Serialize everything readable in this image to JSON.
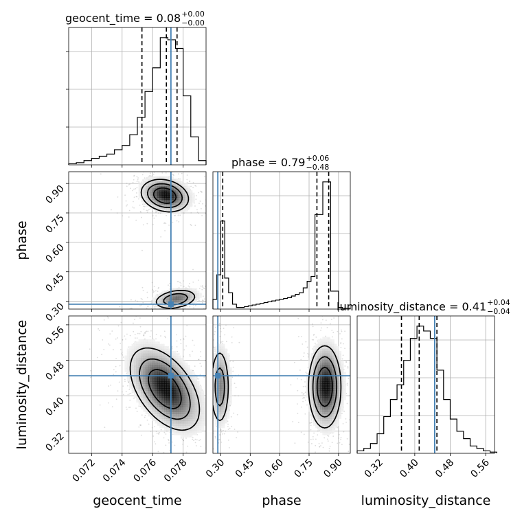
{
  "colors": {
    "truth": "#4682b4",
    "ink": "#000000",
    "grid": "#b0b0b0",
    "scatter": "#9a9a9a"
  },
  "chart_data": {
    "type": "corner",
    "parameters": [
      "geocent_time",
      "phase",
      "luminosity_distance"
    ],
    "titles": [
      {
        "name": "geocent_time",
        "value": "0.08",
        "plus": "+0.00",
        "minus": "−0.00"
      },
      {
        "name": "phase",
        "value": "0.79",
        "plus": "+0.06",
        "minus": "−0.48"
      },
      {
        "name": "luminosity_distance",
        "value": "0.41",
        "plus": "+0.04",
        "minus": "−0.04"
      }
    ],
    "truths": [
      0.0772,
      0.285,
      0.445
    ],
    "ranges": [
      [
        0.0705,
        0.0795
      ],
      [
        0.26,
        0.96
      ],
      [
        0.27,
        0.58
      ]
    ],
    "ticks": [
      {
        "values": [
          0.072,
          0.074,
          0.076,
          0.078
        ],
        "labels": [
          "0.072",
          "0.074",
          "0.076",
          "0.078"
        ]
      },
      {
        "values": [
          0.3,
          0.45,
          0.6,
          0.75,
          0.9
        ],
        "labels": [
          "0.30",
          "0.45",
          "0.60",
          "0.75",
          "0.90"
        ]
      },
      {
        "values": [
          0.32,
          0.4,
          0.48,
          0.56
        ],
        "labels": [
          "0.32",
          "0.40",
          "0.48",
          "0.56"
        ]
      }
    ],
    "grid": true,
    "histograms": [
      {
        "param": "geocent_time",
        "bins": [
          0.0705,
          0.071,
          0.0715,
          0.072,
          0.0725,
          0.073,
          0.0735,
          0.074,
          0.0745,
          0.075,
          0.0755,
          0.076,
          0.0765,
          0.077,
          0.0775,
          0.078,
          0.0785,
          0.079,
          0.0795
        ],
        "counts": [
          0.5,
          1,
          2,
          3,
          4,
          5,
          7,
          9,
          14,
          22,
          34,
          45,
          59,
          58,
          54,
          32,
          13,
          2
        ],
        "quantiles": [
          0.0753,
          0.0769,
          0.0776
        ]
      },
      {
        "param": "phase",
        "bins": [
          0.26,
          0.28,
          0.3,
          0.32,
          0.34,
          0.36,
          0.38,
          0.4,
          0.42,
          0.44,
          0.46,
          0.48,
          0.5,
          0.52,
          0.54,
          0.56,
          0.58,
          0.6,
          0.62,
          0.64,
          0.66,
          0.68,
          0.7,
          0.72,
          0.74,
          0.76,
          0.78,
          0.8,
          0.82,
          0.84,
          0.86,
          0.88,
          0.9,
          0.92,
          0.94,
          0.96
        ],
        "counts": [
          6,
          21,
          54,
          19,
          10,
          3,
          1,
          1,
          1.5,
          2,
          2.5,
          3,
          3.5,
          4,
          4.5,
          5,
          5.5,
          6,
          6.5,
          7,
          8,
          9,
          10,
          13,
          17,
          20,
          58,
          58,
          78,
          78,
          11,
          11,
          1,
          0.5,
          0.5
        ],
        "quantiles": [
          0.31,
          0.79,
          0.85
        ]
      },
      {
        "param": "luminosity_distance",
        "bins": [
          0.27,
          0.285,
          0.3,
          0.315,
          0.33,
          0.345,
          0.36,
          0.375,
          0.39,
          0.405,
          0.42,
          0.435,
          0.45,
          0.465,
          0.48,
          0.495,
          0.51,
          0.525,
          0.54,
          0.555,
          0.57,
          0.585
        ],
        "counts": [
          1,
          2,
          4,
          8,
          15,
          22,
          28,
          38,
          47,
          52,
          50,
          47,
          34,
          22,
          14,
          9,
          6,
          3,
          2,
          1,
          0.5
        ],
        "quantiles": [
          0.37,
          0.41,
          0.45
        ]
      }
    ],
    "contours_2d": [
      {
        "x": "geocent_time",
        "y": "phase",
        "modes": [
          {
            "cx": 0.0768,
            "cy": 0.838,
            "sx": 0.00075,
            "sy": 0.04,
            "rho": -0.2,
            "weight": 1.0
          },
          {
            "cx": 0.0775,
            "cy": 0.31,
            "sx": 0.0007,
            "sy": 0.025,
            "rho": 0.3,
            "weight": 0.6
          }
        ]
      },
      {
        "x": "geocent_time",
        "y": "luminosity_distance",
        "modes": [
          {
            "cx": 0.0768,
            "cy": 0.415,
            "sx": 0.0011,
            "sy": 0.045,
            "rho": -0.5,
            "weight": 1.0
          }
        ]
      },
      {
        "x": "phase",
        "y": "luminosity_distance",
        "modes": [
          {
            "cx": 0.295,
            "cy": 0.42,
            "sx": 0.025,
            "sy": 0.045,
            "rho": 0.0,
            "weight": 0.5
          },
          {
            "cx": 0.83,
            "cy": 0.42,
            "sx": 0.04,
            "sy": 0.045,
            "rho": 0.0,
            "weight": 1.0
          }
        ]
      }
    ]
  }
}
